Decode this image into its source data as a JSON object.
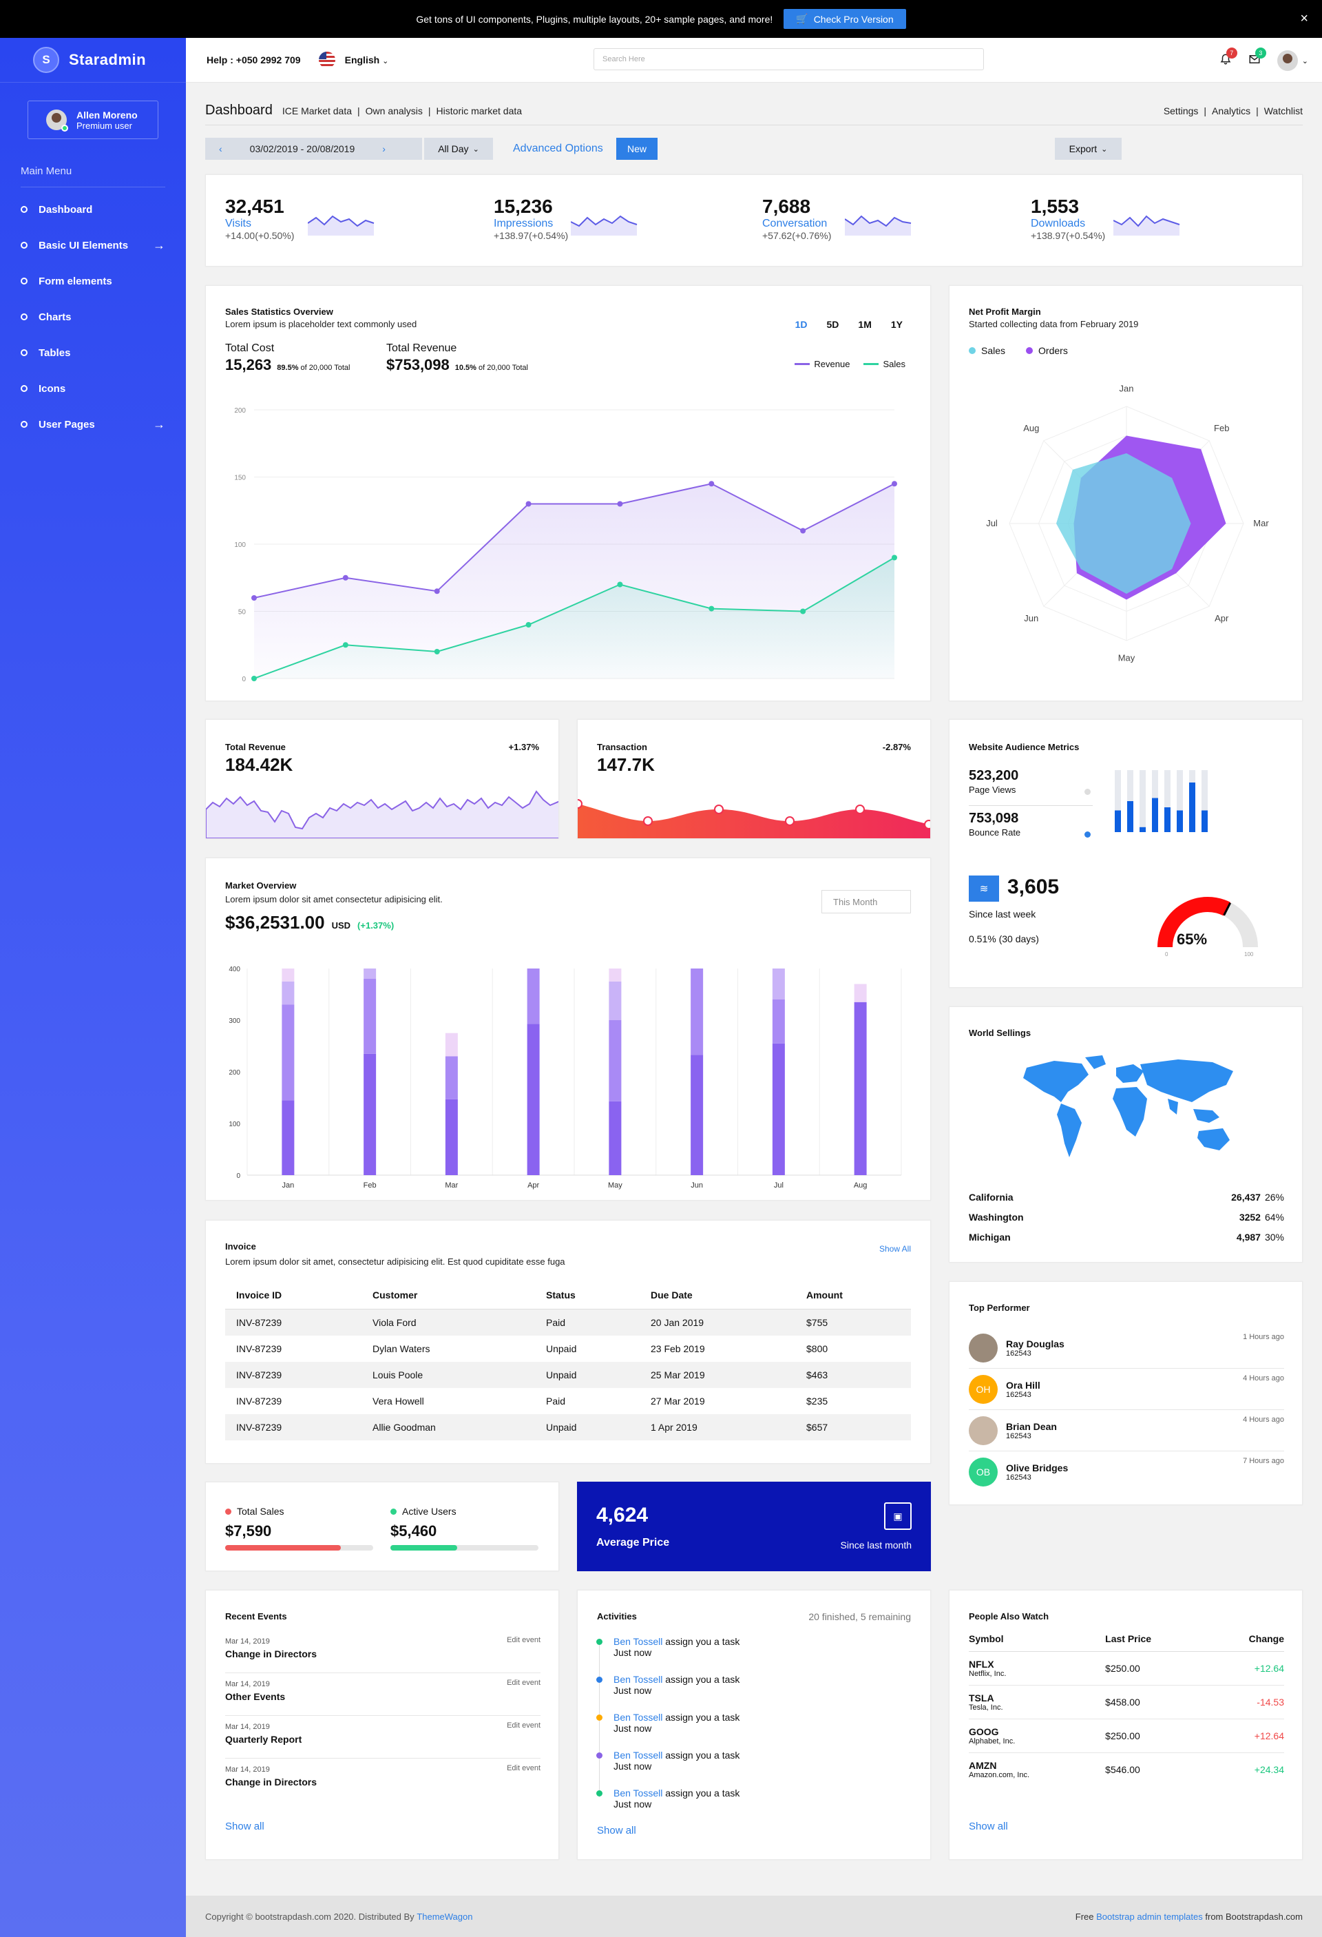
{
  "banner": {
    "text": "Get tons of UI components, Plugins, multiple layouts, 20+ sample pages, and more!",
    "button": "Check Pro Version"
  },
  "sidebar": {
    "brand": "Staradmin",
    "brand_initial": "S",
    "user_name": "Allen Moreno",
    "user_role": "Premium user",
    "menu_title": "Main Menu",
    "items": [
      {
        "label": "Dashboard"
      },
      {
        "label": "Basic UI Elements"
      },
      {
        "label": "Form elements"
      },
      {
        "label": "Charts"
      },
      {
        "label": "Tables"
      },
      {
        "label": "Icons"
      },
      {
        "label": "User Pages"
      }
    ]
  },
  "header": {
    "help": "Help : +050 2992 709",
    "language": "English",
    "search_placeholder": "Search Here",
    "notif_count": "7",
    "mail_count": "3"
  },
  "page": {
    "title": "Dashboard",
    "sub_nav": [
      "ICE Market data",
      "Own analysis",
      "Historic market data"
    ],
    "right_nav": [
      "Settings",
      "Analytics",
      "Watchlist"
    ],
    "date_range": "03/02/2019 - 20/08/2019",
    "all_day": "All Day",
    "advanced": "Advanced Options",
    "new": "New",
    "export": "Export"
  },
  "stats": [
    {
      "value": "32,451",
      "label": "Visits",
      "change": "+14.00(+0.50%)"
    },
    {
      "value": "15,236",
      "label": "Impressions",
      "change": "+138.97(+0.54%)"
    },
    {
      "value": "7,688",
      "label": "Conversation",
      "change": "+57.62(+0.76%)"
    },
    {
      "value": "1,553",
      "label": "Downloads",
      "change": "+138.97(+0.54%)"
    }
  ],
  "sales_overview": {
    "title": "Sales Statistics Overview",
    "subtitle": "Lorem ipsum is placeholder text commonly used",
    "periods": [
      "1D",
      "5D",
      "1M",
      "1Y"
    ],
    "total_cost_label": "Total Cost",
    "total_cost": "15,263",
    "total_cost_pct": "89.5%",
    "total_cost_of": "of 20,000 Total",
    "total_rev_label": "Total Revenue",
    "total_rev": "$753,098",
    "total_rev_pct": "10.5%",
    "total_rev_of": "of 20,000 Total",
    "legend": [
      "Revenue",
      "Sales"
    ]
  },
  "net_profit": {
    "title": "Net Profit Margin",
    "subtitle": "Started collecting data from February 2019",
    "legend": [
      "Sales",
      "Orders"
    ]
  },
  "total_revenue": {
    "title": "Total Revenue",
    "value": "184.42K",
    "change": "+1.37%"
  },
  "transaction": {
    "title": "Transaction",
    "value": "147.7K",
    "change": "-2.87%"
  },
  "audience": {
    "title": "Website Audience Metrics",
    "page_views": "523,200",
    "page_views_label": "Page Views",
    "bounce": "753,098",
    "bounce_label": "Bounce Rate",
    "count": "3,605",
    "since": "Since last week",
    "pct": "0.51% (30 days)",
    "gauge": "65%",
    "gauge_min": "0",
    "gauge_max": "100",
    "gauge_value": 65
  },
  "market": {
    "title": "Market Overview",
    "subtitle": "Lorem ipsum dolor sit amet consectetur adipisicing elit.",
    "value": "$36,2531.00",
    "currency": "USD",
    "change": "(+1.37%)",
    "period": "This Month"
  },
  "world": {
    "title": "World Sellings",
    "rows": [
      {
        "name": "California",
        "value": "26,437",
        "pct": "26%"
      },
      {
        "name": "Washington",
        "value": "3252",
        "pct": "64%"
      },
      {
        "name": "Michigan",
        "value": "4,987",
        "pct": "30%"
      }
    ]
  },
  "invoice": {
    "title": "Invoice",
    "subtitle": "Lorem ipsum dolor sit amet, consectetur adipisicing elit. Est quod cupiditate esse fuga",
    "show_all": "Show All",
    "columns": [
      "Invoice ID",
      "Customer",
      "Status",
      "Due Date",
      "Amount"
    ],
    "rows": [
      [
        "INV-87239",
        "Viola Ford",
        "Paid",
        "20 Jan 2019",
        "$755"
      ],
      [
        "INV-87239",
        "Dylan Waters",
        "Unpaid",
        "23 Feb 2019",
        "$800"
      ],
      [
        "INV-87239",
        "Louis Poole",
        "Unpaid",
        "25 Mar 2019",
        "$463"
      ],
      [
        "INV-87239",
        "Vera Howell",
        "Paid",
        "27 Mar 2019",
        "$235"
      ],
      [
        "INV-87239",
        "Allie Goodman",
        "Unpaid",
        "1 Apr 2019",
        "$657"
      ]
    ]
  },
  "top_performer": {
    "title": "Top Performer",
    "people": [
      {
        "name": "Ray Douglas",
        "id": "162543",
        "time": "1 Hours ago",
        "initials": "",
        "color": "#9a8a7a"
      },
      {
        "name": "Ora Hill",
        "id": "162543",
        "time": "4 Hours ago",
        "initials": "OH",
        "color": "#ffab00"
      },
      {
        "name": "Brian Dean",
        "id": "162543",
        "time": "4 Hours ago",
        "initials": "",
        "color": "#c9b7a6"
      },
      {
        "name": "Olive Bridges",
        "id": "162543",
        "time": "7 Hours ago",
        "initials": "OB",
        "color": "#2ed38a"
      }
    ]
  },
  "sales_users": {
    "total_sales_label": "Total Sales",
    "total_sales": "$7,590",
    "active_users_label": "Active Users",
    "active_users": "$5,460",
    "sales_progress": 0.78,
    "users_progress": 0.45
  },
  "avg_price": {
    "value": "4,624",
    "label": "Average Price",
    "since": "Since last month"
  },
  "events": {
    "title": "Recent Events",
    "items": [
      {
        "date": "Mar 14, 2019",
        "name": "Change in Directors",
        "edit": "Edit event"
      },
      {
        "date": "Mar 14, 2019",
        "name": "Other Events",
        "edit": "Edit event"
      },
      {
        "date": "Mar 14, 2019",
        "name": "Quarterly Report",
        "edit": "Edit event"
      },
      {
        "date": "Mar 14, 2019",
        "name": "Change in Directors",
        "edit": "Edit event"
      }
    ],
    "show_all": "Show all"
  },
  "activities": {
    "title": "Activities",
    "summary": "20 finished, 5 remaining",
    "items": [
      {
        "who": "Ben Tossell",
        "what": "assign you a task",
        "when": "Just now",
        "color": "#19c67d"
      },
      {
        "who": "Ben Tossell",
        "what": "assign you a task",
        "when": "Just now",
        "color": "#2d7fe6"
      },
      {
        "who": "Ben Tossell",
        "what": "assign you a task",
        "when": "Just now",
        "color": "#ffab00"
      },
      {
        "who": "Ben Tossell",
        "what": "assign you a task",
        "when": "Just now",
        "color": "#8a63e6"
      },
      {
        "who": "Ben Tossell",
        "what": "assign you a task",
        "when": "Just now",
        "color": "#19c67d"
      }
    ],
    "show_all": "Show all"
  },
  "watch": {
    "title": "People Also Watch",
    "columns": [
      "Symbol",
      "Last Price",
      "Change"
    ],
    "rows": [
      {
        "symbol": "NFLX",
        "company": "Netflix, Inc.",
        "price": "$250.00",
        "change": "+12.64",
        "up": true
      },
      {
        "symbol": "TSLA",
        "company": "Tesla, Inc.",
        "price": "$458.00",
        "change": "-14.53",
        "up": false
      },
      {
        "symbol": "GOOG",
        "company": "Alphabet, Inc.",
        "price": "$250.00",
        "change": "+12.64",
        "up": false
      },
      {
        "symbol": "AMZN",
        "company": "Amazon.com, Inc.",
        "price": "$546.00",
        "change": "+24.34",
        "up": true
      }
    ],
    "show_all": "Show all"
  },
  "footer": {
    "left": "Copyright © bootstrapdash.com 2020. Distributed By",
    "left_link": "ThemeWagon",
    "right_pre": "Free",
    "right_link": "Bootstrap admin templates",
    "right_post": "from Bootstrapdash.com"
  },
  "chart_data": [
    {
      "type": "line",
      "title": "Sales Statistics Overview",
      "x": [
        1,
        2,
        3,
        4,
        5,
        6,
        7,
        8
      ],
      "ylim": [
        0,
        200
      ],
      "yticks": [
        0,
        50,
        100,
        150,
        200
      ],
      "series": [
        {
          "name": "Revenue",
          "values": [
            60,
            75,
            65,
            130,
            130,
            145,
            110,
            145
          ],
          "color": "#8a63e6"
        },
        {
          "name": "Sales",
          "values": [
            0,
            25,
            20,
            40,
            70,
            52,
            50,
            90
          ],
          "color": "#2ed3a0"
        }
      ]
    },
    {
      "type": "bar",
      "title": "Market Overview",
      "categories": [
        "Jan",
        "Feb",
        "Mar",
        "Apr",
        "May",
        "Jun",
        "Jul",
        "Aug"
      ],
      "ylim": [
        0,
        400
      ],
      "yticks": [
        0,
        100,
        200,
        300,
        400
      ],
      "series": [
        {
          "name": "a",
          "values": [
            145,
            235,
            147,
            293,
            143,
            233,
            255,
            335
          ]
        },
        {
          "name": "b",
          "values": [
            185,
            145,
            83,
            107,
            157,
            167,
            85,
            0
          ]
        },
        {
          "name": "c",
          "values": [
            45,
            20,
            0,
            0,
            75,
            0,
            60,
            0
          ]
        },
        {
          "name": "d",
          "values": [
            25,
            0,
            45,
            0,
            25,
            0,
            0,
            35
          ]
        }
      ]
    },
    {
      "type": "radar",
      "title": "Net Profit Margin",
      "categories": [
        "Jan",
        "Feb",
        "Mar",
        "Apr",
        "May",
        "Jun",
        "Jul",
        "Aug"
      ],
      "series": [
        {
          "name": "Sales",
          "values": [
            60,
            55,
            55,
            55,
            60,
            55,
            60,
            65
          ]
        },
        {
          "name": "Orders",
          "values": [
            75,
            90,
            85,
            60,
            65,
            60,
            45,
            55
          ]
        }
      ]
    },
    {
      "type": "bar",
      "title": "Website Audience Metrics",
      "categories": [
        1,
        2,
        3,
        4,
        5,
        6,
        7,
        8
      ],
      "values": [
        0.35,
        0.5,
        0.08,
        0.55,
        0.4,
        0.35,
        0.8,
        0.35
      ]
    }
  ]
}
